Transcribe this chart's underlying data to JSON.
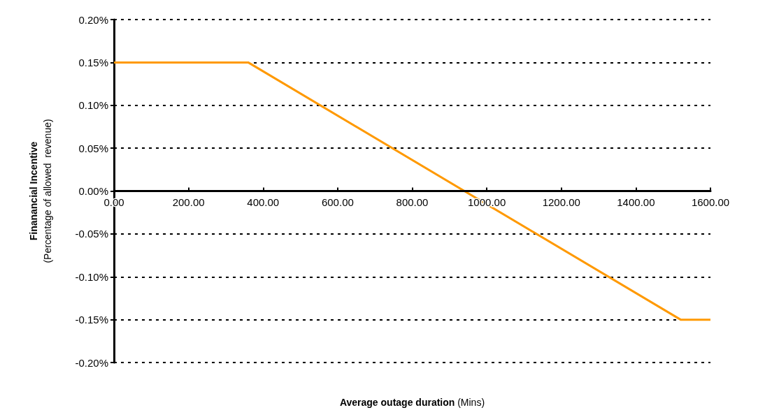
{
  "chart_data": {
    "type": "line",
    "xlabel": "Average outage duration (Mins)",
    "ylabel": "Finanancial Incentive\n(Percentage of allowed  revenue)",
    "x": [
      0,
      360,
      1520,
      1600
    ],
    "series": [
      {
        "color": "#ff9900",
        "values": [
          0.15,
          0.15,
          -0.15,
          -0.15
        ]
      }
    ],
    "xlim": [
      0,
      1600
    ],
    "xticks": [
      {
        "value": 0,
        "label": "0.00"
      },
      {
        "value": 200,
        "label": "200.00"
      },
      {
        "value": 400,
        "label": "400.00"
      },
      {
        "value": 600,
        "label": "600.00"
      },
      {
        "value": 800,
        "label": "800.00"
      },
      {
        "value": 1000,
        "label": "1000.00"
      },
      {
        "value": 1200,
        "label": "1200.00"
      },
      {
        "value": 1400,
        "label": "1400.00"
      },
      {
        "value": 1600,
        "label": "1600.00"
      }
    ],
    "ylim": [
      -0.2,
      0.2
    ],
    "yticks": [
      {
        "value": -0.2,
        "label": "-0.20%"
      },
      {
        "value": -0.15,
        "label": "-0.15%"
      },
      {
        "value": -0.1,
        "label": "-0.10%"
      },
      {
        "value": -0.05,
        "label": "-0.05%"
      },
      {
        "value": 0,
        "label": "0.00%"
      },
      {
        "value": 0.05,
        "label": "0.05%"
      },
      {
        "value": 0.1,
        "label": "0.10%"
      },
      {
        "value": 0.15,
        "label": "0.15%"
      },
      {
        "value": 0.2,
        "label": "0.20%"
      }
    ],
    "grid": "y",
    "marker": "none",
    "line_style": "solid"
  }
}
